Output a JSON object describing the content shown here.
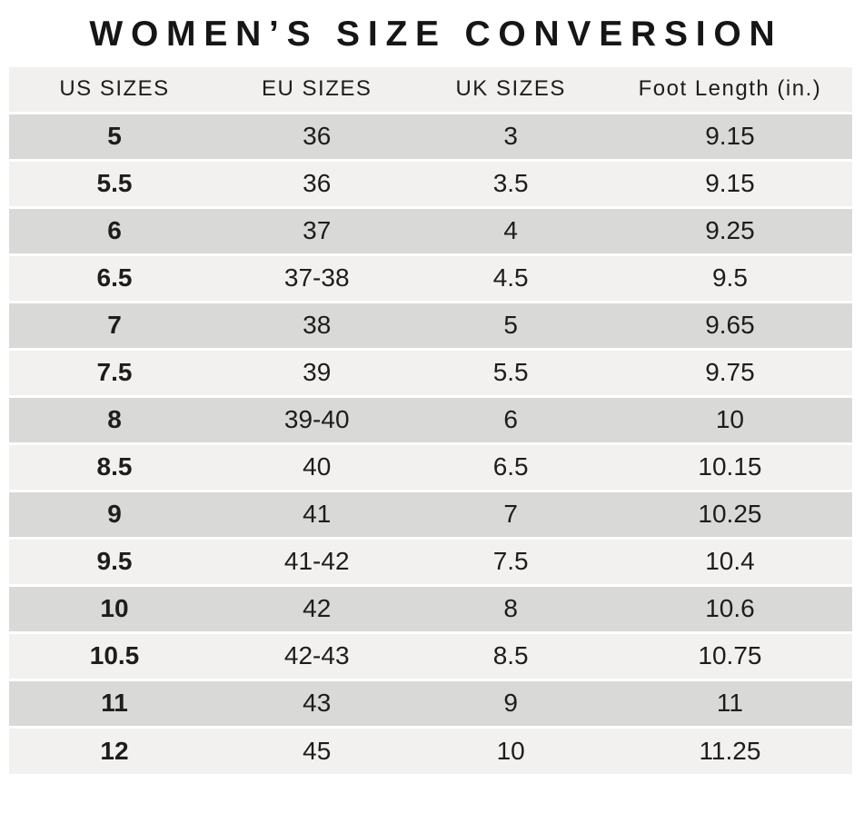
{
  "page": {
    "title": "WOMEN’S SIZE CONVERSION"
  },
  "table": {
    "headers": [
      "US SIZES",
      "EU SIZES",
      "UK SIZES",
      "Foot Length (in.)"
    ],
    "rows": [
      {
        "us": "5",
        "eu": "36",
        "uk": "3",
        "foot": "9.15"
      },
      {
        "us": "5.5",
        "eu": "36",
        "uk": "3.5",
        "foot": "9.15"
      },
      {
        "us": "6",
        "eu": "37",
        "uk": "4",
        "foot": "9.25"
      },
      {
        "us": "6.5",
        "eu": "37-38",
        "uk": "4.5",
        "foot": "9.5"
      },
      {
        "us": "7",
        "eu": "38",
        "uk": "5",
        "foot": "9.65"
      },
      {
        "us": "7.5",
        "eu": "39",
        "uk": "5.5",
        "foot": "9.75"
      },
      {
        "us": "8",
        "eu": "39-40",
        "uk": "6",
        "foot": "10"
      },
      {
        "us": "8.5",
        "eu": "40",
        "uk": "6.5",
        "foot": "10.15"
      },
      {
        "us": "9",
        "eu": "41",
        "uk": "7",
        "foot": "10.25"
      },
      {
        "us": "9.5",
        "eu": "41-42",
        "uk": "7.5",
        "foot": "10.4"
      },
      {
        "us": "10",
        "eu": "42",
        "uk": "8",
        "foot": "10.6"
      },
      {
        "us": "10.5",
        "eu": "42-43",
        "uk": "8.5",
        "foot": "10.75"
      },
      {
        "us": "11",
        "eu": "43",
        "uk": "9",
        "foot": "11"
      },
      {
        "us": "12",
        "eu": "45",
        "uk": "10",
        "foot": "11.25"
      }
    ]
  },
  "colors": {
    "row_dark": "#d9d9d8",
    "row_light": "#f2f1f0",
    "header_bg": "#f1f0ef",
    "text": "#1d1d1b",
    "background": "#ffffff"
  },
  "chart_data": {
    "type": "table",
    "title": "WOMEN’S SIZE CONVERSION",
    "columns": [
      "US SIZES",
      "EU SIZES",
      "UK SIZES",
      "Foot Length (in.)"
    ],
    "rows": [
      [
        "5",
        "36",
        "3",
        "9.15"
      ],
      [
        "5.5",
        "36",
        "3.5",
        "9.15"
      ],
      [
        "6",
        "37",
        "4",
        "9.25"
      ],
      [
        "6.5",
        "37-38",
        "4.5",
        "9.5"
      ],
      [
        "7",
        "38",
        "5",
        "9.65"
      ],
      [
        "7.5",
        "39",
        "5.5",
        "9.75"
      ],
      [
        "8",
        "39-40",
        "6",
        "10"
      ],
      [
        "8.5",
        "40",
        "6.5",
        "10.15"
      ],
      [
        "9",
        "41",
        "7",
        "10.25"
      ],
      [
        "9.5",
        "41-42",
        "7.5",
        "10.4"
      ],
      [
        "10",
        "42",
        "8",
        "10.6"
      ],
      [
        "10.5",
        "42-43",
        "8.5",
        "10.75"
      ],
      [
        "11",
        "43",
        "9",
        "11"
      ],
      [
        "12",
        "45",
        "10",
        "11.25"
      ]
    ],
    "layout": {
      "striped_rows": true,
      "first_column_bold": true,
      "header_position": "top"
    }
  }
}
